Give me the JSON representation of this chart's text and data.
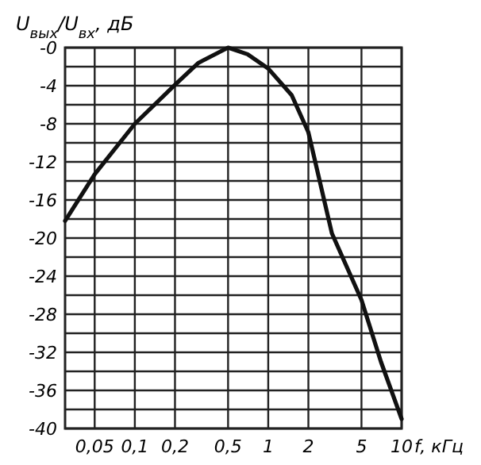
{
  "chart_data": {
    "type": "line",
    "xlabel": "f, кГц",
    "ylabel": "U$_{вых}$/U$_{вх}$, дБ",
    "log": "x",
    "grid": true,
    "marker": "none",
    "line_style": "solid",
    "xlim": [
      0.03,
      10
    ],
    "ylim": [
      -40,
      0
    ],
    "xticks": [
      {
        "value": 0.05,
        "label": "0,05"
      },
      {
        "value": 0.1,
        "label": "0,1"
      },
      {
        "value": 0.2,
        "label": "0,2"
      },
      {
        "value": 0.5,
        "label": "0,5"
      },
      1,
      2,
      5,
      10
    ],
    "yticks": [
      {
        "value": 0,
        "label": "-0"
      },
      {
        "value": -2,
        "label": null
      },
      -4,
      {
        "value": -6,
        "label": null
      },
      -8,
      {
        "value": -10,
        "label": null
      },
      -12,
      {
        "value": -14,
        "label": null
      },
      -16,
      {
        "value": -18,
        "label": null
      },
      -20,
      {
        "value": -22,
        "label": null
      },
      -24,
      {
        "value": -26,
        "label": null
      },
      -28,
      {
        "value": -30,
        "label": null
      },
      -32,
      {
        "value": -34,
        "label": null
      },
      -36,
      {
        "value": -38,
        "label": null
      },
      -40
    ],
    "x": [
      0.03,
      0.05,
      0.1,
      0.2,
      0.3,
      0.5,
      0.7,
      1,
      1.5,
      2,
      3,
      5,
      7,
      10
    ],
    "series": [
      {
        "color": "#111111",
        "values": [
          -18.2,
          -13.3,
          -8,
          -3.9,
          -1.6,
          0,
          -0.7,
          -2.2,
          -5,
          -8.9,
          -19.5,
          -26.5,
          -33,
          -39
        ]
      }
    ]
  }
}
